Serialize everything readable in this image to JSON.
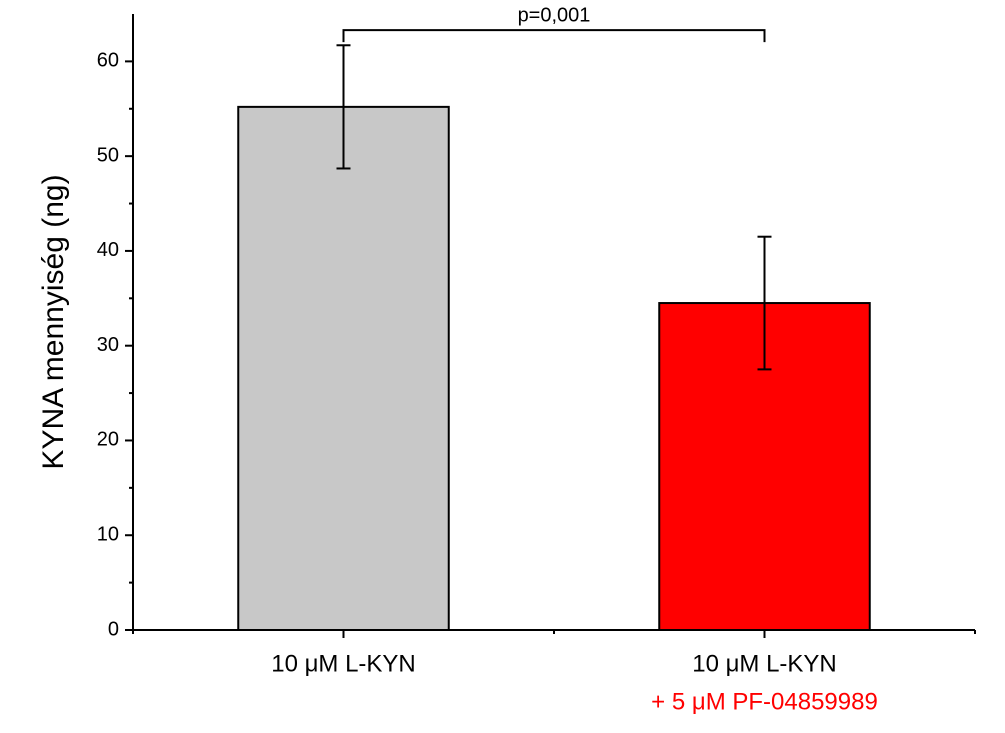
{
  "chart_data": {
    "type": "bar",
    "y_label": "KYNA mennyiség (ng)",
    "categories": [
      {
        "label": "10 μM L-KYN"
      },
      {
        "label": "10 μM L-KYN",
        "sub_label": "+ 5 μM PF-04859989"
      }
    ],
    "sub_label_color": "#ff0000",
    "values": [
      55.2,
      34.5
    ],
    "errors": [
      6.5,
      7.0
    ],
    "colors": [
      "#c8c8c8",
      "#ff0000"
    ],
    "ylim": [
      0,
      65
    ],
    "yticks": [
      0,
      10,
      20,
      30,
      40,
      50,
      60
    ],
    "minor_yticks": [
      5,
      15,
      25,
      35,
      45,
      55
    ],
    "annotation": {
      "text": "p=0,001",
      "from": 0,
      "to": 1,
      "y": 63.3
    }
  }
}
